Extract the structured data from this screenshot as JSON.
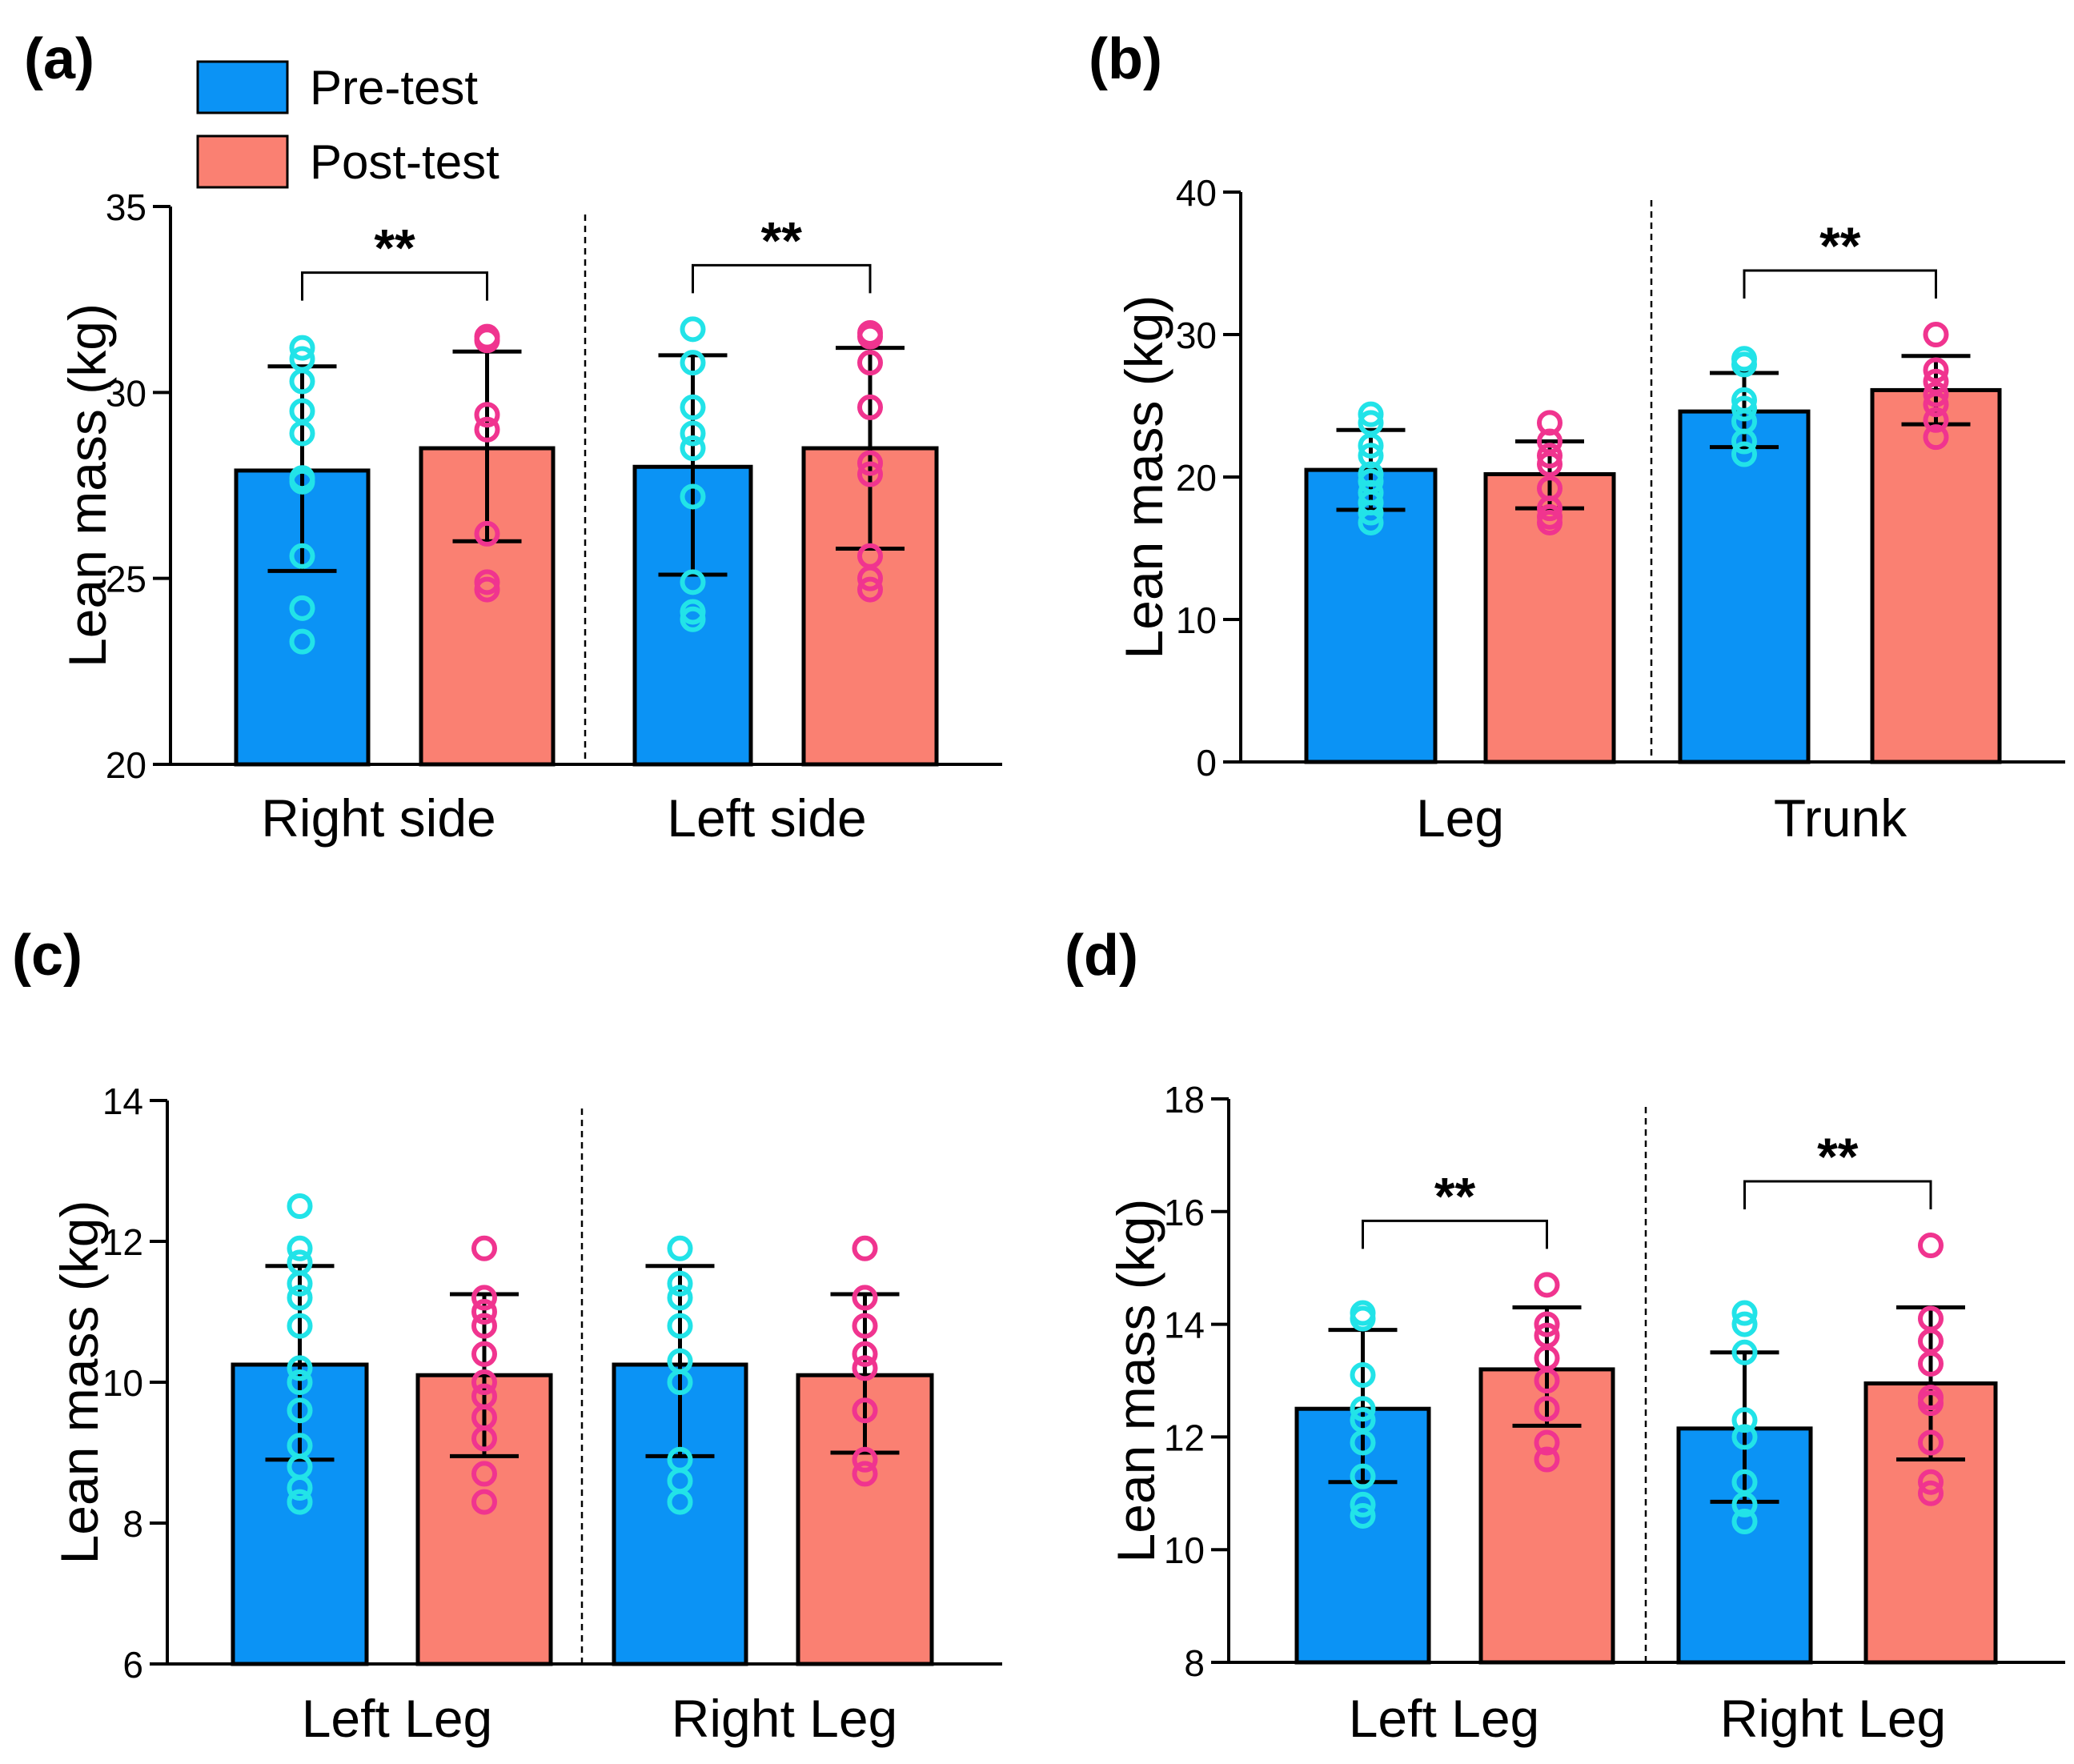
{
  "legend": {
    "items": [
      {
        "label": "Pre-test",
        "color": "#0b93f5"
      },
      {
        "label": "Post-test",
        "color": "#fa8072"
      }
    ]
  },
  "colors": {
    "pre_bar": "#0b93f5",
    "post_bar": "#fa8072",
    "pre_point": "#22e3e8",
    "post_point": "#f0348f",
    "axis": "#000000"
  },
  "chart_data": [
    {
      "panel": "(a)",
      "type": "bar",
      "ylabel": "Lean mass (kg)",
      "ylim": [
        20,
        35
      ],
      "yticks": [
        20,
        25,
        30,
        35
      ],
      "groups": [
        {
          "label": "Right side",
          "significance": "**",
          "bars": [
            {
              "series": "Pre-test",
              "mean": 27.9,
              "sd_low": 25.2,
              "sd_high": 30.7,
              "points": [
                31.2,
                30.9,
                30.3,
                29.5,
                28.9,
                27.7,
                27.6,
                25.6,
                24.2,
                23.3
              ]
            },
            {
              "series": "Post-test",
              "mean": 28.5,
              "sd_low": 26.0,
              "sd_high": 31.1,
              "points": [
                31.5,
                31.4,
                29.4,
                29.0,
                26.2,
                24.9,
                24.7
              ]
            }
          ]
        },
        {
          "label": "Left side",
          "significance": "**",
          "bars": [
            {
              "series": "Pre-test",
              "mean": 28.0,
              "sd_low": 25.1,
              "sd_high": 31.0,
              "points": [
                31.7,
                30.8,
                29.6,
                28.9,
                28.5,
                27.2,
                24.9,
                24.1,
                23.9
              ]
            },
            {
              "series": "Post-test",
              "mean": 28.5,
              "sd_low": 25.8,
              "sd_high": 31.2,
              "points": [
                31.6,
                31.5,
                30.8,
                29.6,
                28.1,
                27.8,
                25.6,
                25.0,
                24.7
              ]
            }
          ]
        }
      ],
      "separator": true
    },
    {
      "panel": "(b)",
      "type": "bar",
      "ylabel": "Lean mass (kg)",
      "ylim": [
        0,
        40
      ],
      "yticks": [
        0,
        10,
        20,
        30,
        40
      ],
      "groups": [
        {
          "label": "Leg",
          "significance": "",
          "bars": [
            {
              "series": "Pre-test",
              "mean": 20.5,
              "sd_low": 17.7,
              "sd_high": 23.3,
              "points": [
                24.4,
                23.8,
                22.2,
                21.5,
                20.2,
                19.7,
                18.9,
                18.2,
                17.5,
                16.8
              ]
            },
            {
              "series": "Post-test",
              "mean": 20.2,
              "sd_low": 17.8,
              "sd_high": 22.5,
              "points": [
                23.8,
                22.5,
                21.5,
                20.9,
                19.2,
                17.8,
                17.2,
                16.8
              ]
            }
          ]
        },
        {
          "label": "Trunk",
          "significance": "**",
          "bars": [
            {
              "series": "Pre-test",
              "mean": 24.6,
              "sd_low": 22.1,
              "sd_high": 27.3,
              "points": [
                28.3,
                27.9,
                25.4,
                24.8,
                23.9,
                22.5,
                21.6
              ]
            },
            {
              "series": "Post-test",
              "mean": 26.1,
              "sd_low": 23.7,
              "sd_high": 28.5,
              "points": [
                30.0,
                27.5,
                26.7,
                25.8,
                25.1,
                24.0,
                22.8
              ]
            }
          ]
        }
      ],
      "separator": true
    },
    {
      "panel": "(c)",
      "type": "bar",
      "ylabel": "Lean mass (kg)",
      "ylim": [
        6,
        14
      ],
      "yticks": [
        6,
        8,
        10,
        12,
        14
      ],
      "groups": [
        {
          "label": "Left Leg",
          "significance": "",
          "bars": [
            {
              "series": "Pre-test",
              "mean": 10.25,
              "sd_low": 8.9,
              "sd_high": 11.65,
              "points": [
                12.5,
                11.9,
                11.7,
                11.4,
                11.2,
                10.8,
                10.2,
                10.0,
                9.6,
                9.1,
                8.8,
                8.5,
                8.3
              ]
            },
            {
              "series": "Post-test",
              "mean": 10.1,
              "sd_low": 8.95,
              "sd_high": 11.25,
              "points": [
                11.9,
                11.2,
                11.0,
                10.8,
                10.4,
                10.0,
                9.8,
                9.5,
                9.2,
                8.7,
                8.3
              ]
            }
          ]
        },
        {
          "label": "Right Leg",
          "significance": "",
          "bars": [
            {
              "series": "Pre-test",
              "mean": 10.25,
              "sd_low": 8.95,
              "sd_high": 11.65,
              "points": [
                11.9,
                11.4,
                11.2,
                10.8,
                10.3,
                10.0,
                8.9,
                8.6,
                8.3
              ]
            },
            {
              "series": "Post-test",
              "mean": 10.1,
              "sd_low": 9.0,
              "sd_high": 11.25,
              "points": [
                11.9,
                11.2,
                10.8,
                10.4,
                10.2,
                9.6,
                8.9,
                8.7
              ]
            }
          ]
        }
      ],
      "separator": true
    },
    {
      "panel": "(d)",
      "type": "bar",
      "ylabel": "Lean mass (kg)",
      "ylim": [
        8,
        18
      ],
      "yticks": [
        8,
        10,
        12,
        14,
        16,
        18
      ],
      "groups": [
        {
          "label": "Left Leg",
          "significance": "**",
          "bars": [
            {
              "series": "Pre-test",
              "mean": 12.5,
              "sd_low": 11.2,
              "sd_high": 13.9,
              "points": [
                14.2,
                14.1,
                13.1,
                12.5,
                12.3,
                11.9,
                11.3,
                10.8,
                10.6
              ]
            },
            {
              "series": "Post-test",
              "mean": 13.2,
              "sd_low": 12.2,
              "sd_high": 14.3,
              "points": [
                14.7,
                14.0,
                13.8,
                13.4,
                13.0,
                12.5,
                11.9,
                11.6
              ]
            }
          ]
        },
        {
          "label": "Right Leg",
          "significance": "**",
          "bars": [
            {
              "series": "Pre-test",
              "mean": 12.15,
              "sd_low": 10.85,
              "sd_high": 13.5,
              "points": [
                14.2,
                14.0,
                13.5,
                12.3,
                12.0,
                11.2,
                10.8,
                10.5
              ]
            },
            {
              "series": "Post-test",
              "mean": 12.95,
              "sd_low": 11.6,
              "sd_high": 14.3,
              "points": [
                15.4,
                14.1,
                13.7,
                13.3,
                12.7,
                12.6,
                11.9,
                11.2,
                11.0
              ]
            }
          ]
        }
      ],
      "separator": true
    }
  ]
}
